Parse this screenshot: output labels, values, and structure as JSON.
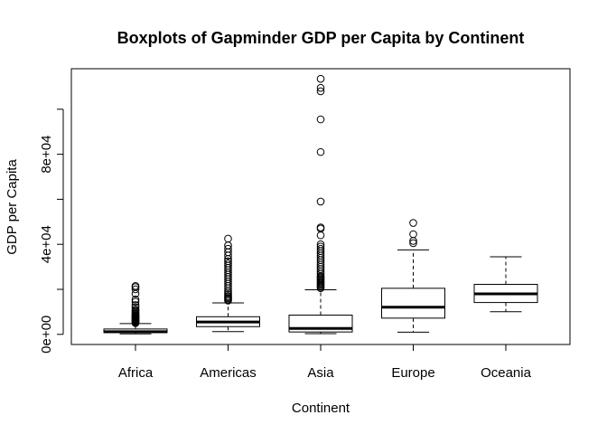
{
  "chart_data": {
    "type": "boxplot",
    "title": "Boxplots of Gapminder GDP per Capita by Continent",
    "xlabel": "Continent",
    "ylabel": "GDP per Capita",
    "ylim": [
      -4500,
      118000
    ],
    "y_ticks": [
      0,
      20000,
      40000,
      60000,
      80000,
      100000
    ],
    "y_tick_labels": [
      "0e+00",
      "",
      "4e+04",
      "",
      "8e+04",
      ""
    ],
    "categories": [
      "Africa",
      "Americas",
      "Asia",
      "Europe",
      "Oceania"
    ],
    "boxes": [
      {
        "name": "Africa",
        "whisker_low": 241,
        "q1": 761,
        "median": 1192,
        "q3": 2377,
        "whisker_high": 4800,
        "outliers": [
          5000,
          5300,
          5600,
          5900,
          6200,
          6500,
          6800,
          7100,
          7400,
          7700,
          8000,
          8300,
          8600,
          9000,
          9500,
          10000,
          10500,
          11000,
          12000,
          13000,
          14500,
          15500,
          18000,
          20000,
          21000,
          21500
        ]
      },
      {
        "name": "Americas",
        "whisker_low": 1202,
        "q1": 3428,
        "median": 5466,
        "q3": 7830,
        "whisker_high": 14000,
        "outliers": [
          15000,
          15500,
          16000,
          16500,
          17000,
          17800,
          18600,
          19500,
          20500,
          21500,
          22500,
          23500,
          24500,
          25500,
          26500,
          27500,
          28500,
          29500,
          30500,
          31500,
          32500,
          33500,
          35000,
          36500,
          38000,
          39500,
          42500
        ]
      },
      {
        "name": "Asia",
        "whisker_low": 331,
        "q1": 1057,
        "median": 2647,
        "q3": 8549,
        "whisker_high": 19800,
        "outliers": [
          20500,
          21000,
          21500,
          22000,
          22500,
          23000,
          23500,
          24000,
          24500,
          25000,
          25500,
          26000,
          27000,
          28000,
          29000,
          30000,
          31000,
          32000,
          33000,
          34000,
          35000,
          36000,
          37000,
          38000,
          39000,
          40000,
          44000,
          47000,
          47500,
          59000,
          81000,
          95500,
          108000,
          109500,
          113500
        ]
      },
      {
        "name": "Europe",
        "whisker_low": 974,
        "q1": 7213,
        "median": 12082,
        "q3": 20461,
        "whisker_high": 37500,
        "outliers": [
          40500,
          41500,
          44500,
          49500
        ]
      },
      {
        "name": "Oceania",
        "whisker_low": 10040,
        "q1": 14142,
        "median": 17983,
        "q3": 22214,
        "whisker_high": 34435,
        "outliers": []
      }
    ]
  }
}
